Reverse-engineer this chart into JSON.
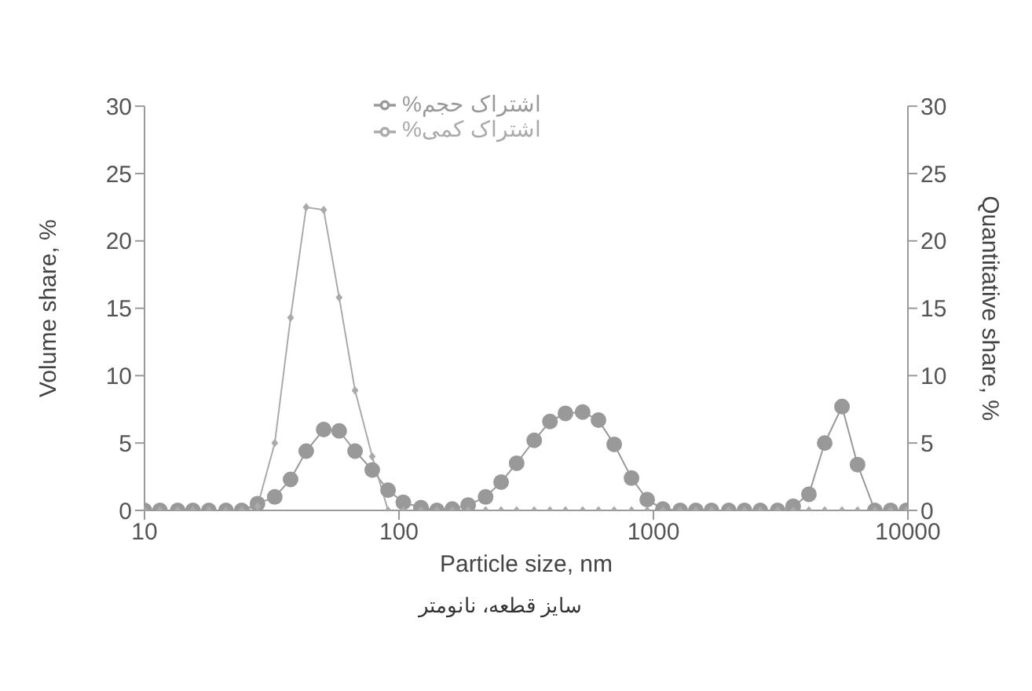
{
  "chart_data": {
    "type": "line",
    "xlabel": "Particle size, nm",
    "ylabel": "Volume share, %",
    "y2label": "Quantitative share, %",
    "annotations": [
      "سایز قطعه، نانومتر"
    ],
    "log": "x",
    "legend": "top",
    "x": [
      10,
      11.5,
      13.5,
      15.5,
      17.9,
      20.9,
      24.1,
      27.8,
      32.5,
      37.5,
      43.2,
      50.6,
      58.2,
      67.2,
      78.5,
      90.6,
      104,
      122,
      141,
      162,
      187,
      219,
      252,
      290,
      340,
      392,
      451,
      527,
      608,
      701,
      820,
      945,
      1089,
      1274,
      1468,
      1691,
      1977,
      2279,
      2630,
      3076,
      3540,
      4083,
      4710,
      5508,
      6340,
      7413,
      8551,
      9862
    ],
    "series": [
      {
        "name": "%اشتراک حجم",
        "color": "#999999",
        "marker": "circle",
        "values": [
          0,
          0,
          0,
          0,
          0,
          0,
          0,
          0.5,
          1.0,
          2.3,
          4.4,
          6.0,
          5.9,
          4.4,
          3.0,
          1.5,
          0.6,
          0.2,
          0,
          0.1,
          0.4,
          1.0,
          2.1,
          3.5,
          5.2,
          6.6,
          7.2,
          7.3,
          6.7,
          4.9,
          2.4,
          0.8,
          0.1,
          0,
          0,
          0,
          0,
          0,
          0,
          0,
          0.3,
          1.2,
          5.0,
          7.7,
          3.4,
          0,
          0,
          0
        ]
      },
      {
        "name": "%اشتراک کمی",
        "color": "#aaaaaa",
        "marker": "diamond",
        "axis": "y2",
        "values": [
          0,
          0,
          0,
          0,
          0,
          0,
          0,
          0.3,
          5.0,
          14.3,
          22.5,
          22.3,
          15.8,
          8.9,
          4.0,
          0,
          0,
          0,
          0,
          0,
          0,
          0,
          0,
          0,
          0,
          0,
          0,
          0,
          0,
          0,
          0,
          0,
          0,
          0,
          0,
          0,
          0,
          0,
          0,
          0,
          0,
          0,
          0,
          0,
          0,
          0,
          0,
          0
        ]
      }
    ],
    "xlim": [
      10,
      10000
    ],
    "xticks": [
      10,
      100,
      1000,
      10000
    ],
    "ylim": [
      0,
      30
    ],
    "yticks": [
      0,
      5,
      10,
      15,
      20,
      25,
      30
    ],
    "y2lim": [
      0,
      30
    ],
    "y2ticks": [
      0,
      5,
      10,
      15,
      20,
      25,
      30
    ]
  }
}
